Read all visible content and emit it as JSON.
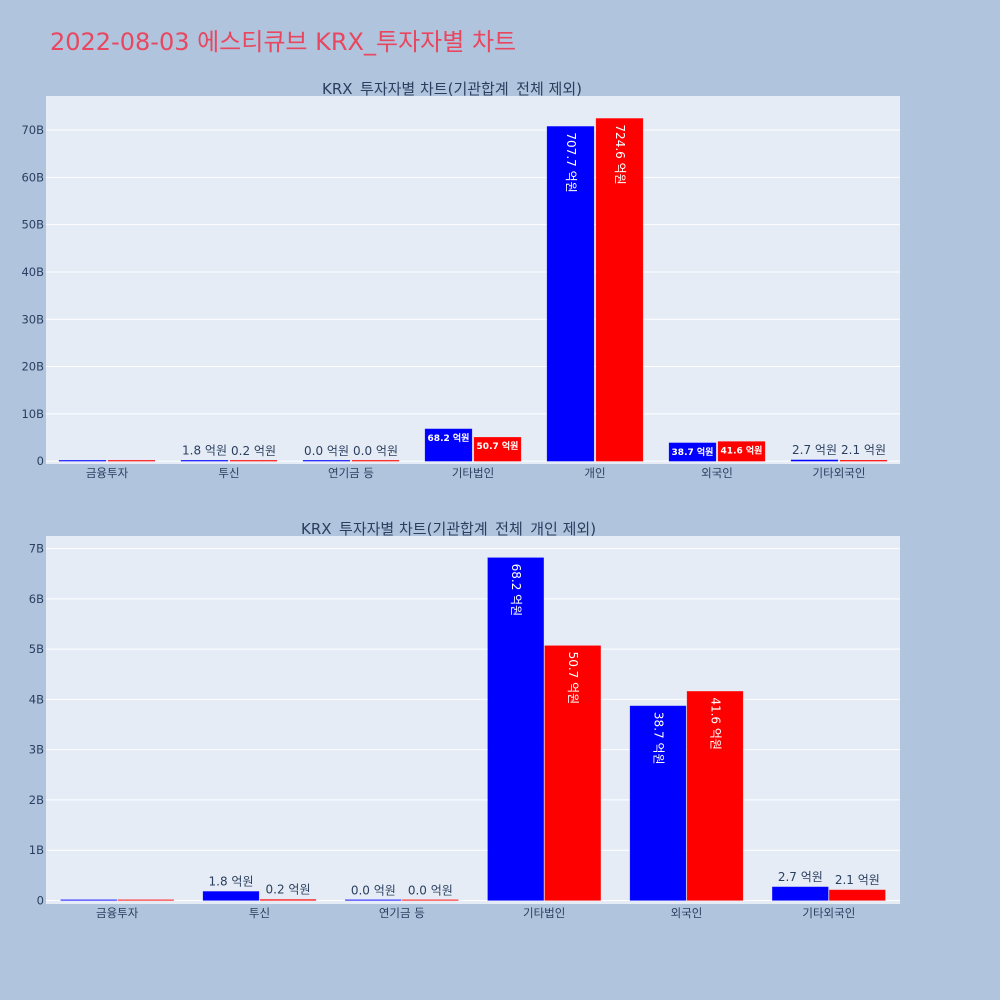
{
  "page": {
    "title": "2022-08-03 에스티큐브 KRX_투자자별 차트"
  },
  "colors": {
    "background": "#b0c4de",
    "plot_bg": "#e5ecf6",
    "series_a": "#0000ff",
    "series_b": "#ff0000",
    "title": "#e8475f"
  },
  "chart_data": [
    {
      "type": "bar",
      "title": "KRX_투자자별 차트(기관합계_전체 제외)",
      "categories": [
        "금융투자",
        "투신",
        "연기금 등",
        "기타법인",
        "개인",
        "외국인",
        "기타외국인"
      ],
      "series": [
        {
          "values": [
            0,
            0.18,
            0.0,
            6.82,
            70.77,
            3.87,
            0.27
          ],
          "labels": [
            "",
            "1.8 억원",
            "0.0 억원",
            "68.2 억원",
            "707.7 억원",
            "38.7 억원",
            "2.7 억원"
          ]
        },
        {
          "values": [
            0,
            0.02,
            0.0,
            5.07,
            72.46,
            4.16,
            0.21
          ],
          "labels": [
            "",
            "0.2 억원",
            "0.0 억원",
            "50.7 억원",
            "724.6 억원",
            "41.6 억원",
            "2.1 억원"
          ]
        }
      ],
      "y_ticks": [
        "0",
        "10B",
        "20B",
        "30B",
        "40B",
        "50B",
        "60B",
        "70B"
      ],
      "y_tick_values": [
        0,
        10,
        20,
        30,
        40,
        50,
        60,
        70
      ],
      "ylim": [
        -0.6,
        77.2
      ],
      "y_unit": "billion KRW",
      "grid": true
    },
    {
      "type": "bar",
      "title": "KRX_투자자별 차트(기관합계_전체_개인 제외)",
      "categories": [
        "금융투자",
        "투신",
        "연기금 등",
        "기타법인",
        "외국인",
        "기타외국인"
      ],
      "series": [
        {
          "values": [
            0,
            0.18,
            0.0,
            6.82,
            3.87,
            0.27
          ],
          "labels": [
            "",
            "1.8 억원",
            "0.0 억원",
            "68.2 억원",
            "38.7 억원",
            "2.7 억원"
          ]
        },
        {
          "values": [
            0,
            0.02,
            0.0,
            5.07,
            4.16,
            0.21
          ],
          "labels": [
            "",
            "0.2 억원",
            "0.0 억원",
            "50.7 억원",
            "41.6 억원",
            "2.1 억원"
          ]
        }
      ],
      "y_ticks": [
        "0",
        "1B",
        "2B",
        "3B",
        "4B",
        "5B",
        "6B",
        "7B"
      ],
      "y_tick_values": [
        0,
        1,
        2,
        3,
        4,
        5,
        6,
        7
      ],
      "ylim": [
        -0.07,
        7.25
      ],
      "y_unit": "billion KRW",
      "grid": true
    }
  ]
}
